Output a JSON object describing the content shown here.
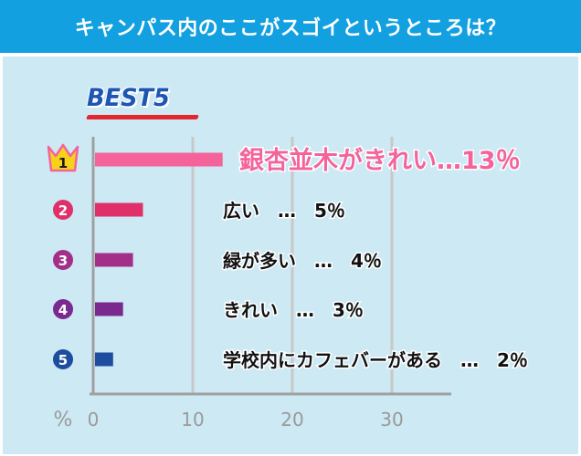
{
  "header": {
    "title": "キャンパス内のここがスゴイというところは？"
  },
  "badge": {
    "text": "BEST5"
  },
  "chart_data": {
    "type": "bar",
    "orientation": "horizontal",
    "categories": [
      "銀杏並木がきれい",
      "広い",
      "緑が多い",
      "きれい",
      "学校内にカフェバーがある"
    ],
    "ranks": [
      "1",
      "2",
      "3",
      "4",
      "5"
    ],
    "values": [
      13,
      5,
      4,
      3,
      2
    ],
    "value_labels": [
      "銀杏並木がきれい…13％",
      "広い　…　5％",
      "緑が多い　…　4％",
      "きれい　…　3％",
      "学校内にカフェバーがある　…　2％"
    ],
    "colors": [
      "#f4649b",
      "#e0306a",
      "#a42f88",
      "#7a2a8f",
      "#1e4da0"
    ],
    "xlabel": "%",
    "xlim": [
      0,
      35
    ],
    "xticks": [
      0,
      10,
      20,
      30
    ],
    "grid": true
  },
  "colors": {
    "header": "#13a0e0",
    "panel": "#cce9f4",
    "gridline": "#c8c8c8",
    "axis": "#a0a0a0",
    "rank1_accent": "#f4649b",
    "crown": "#f7d21a"
  }
}
